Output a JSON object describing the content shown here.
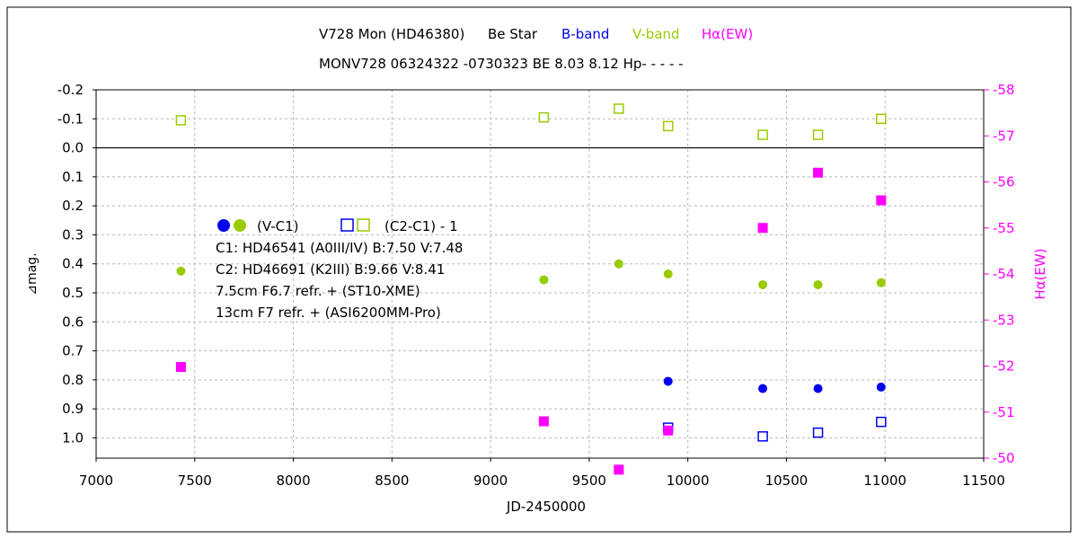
{
  "chart_data": {
    "type": "scatter",
    "title_line1": {
      "star": "V728 Mon (HD46380)",
      "kind": "Be Star",
      "bband": "B-band",
      "vband": "V-band",
      "halpha": "Hα(EW)"
    },
    "title_line2": "MONV728 06324322 -0730323 BE 8.03 8.12 Hp- - - - -",
    "xlabel": "JD-2450000",
    "ylabel_left": "⊿mag.",
    "ylabel_right": "Hα(EW)",
    "xlim": [
      7000,
      11500
    ],
    "ylim_left": [
      -0.2,
      1.07
    ],
    "ylim_right": [
      -58,
      -50
    ],
    "x_ticks": [
      "7000",
      "7500",
      "8000",
      "8500",
      "9000",
      "9500",
      "10000",
      "10500",
      "11000",
      "11500"
    ],
    "y_ticks_left": [
      "-0.2",
      "-0.1",
      "0.0",
      "0.1",
      "0.2",
      "0.3",
      "0.4",
      "0.5",
      "0.6",
      "0.7",
      "0.8",
      "0.9",
      "1.0"
    ],
    "y_ticks_right": [
      "-58",
      "-57",
      "-56",
      "-55",
      "-54",
      "-53",
      "-52",
      "-51",
      "-50"
    ],
    "series": [
      {
        "name": "B (V-C1)",
        "marker": "filled-circle",
        "color": "#0000ee",
        "axis": "left",
        "x": [
          9900,
          10380,
          10660,
          10980
        ],
        "y": [
          0.805,
          0.83,
          0.83,
          0.825
        ]
      },
      {
        "name": "V (V-C1)",
        "marker": "filled-circle",
        "color": "#99cc00",
        "axis": "left",
        "x": [
          7430,
          9270,
          9650,
          9900,
          10380,
          10660,
          10980
        ],
        "y": [
          0.425,
          0.455,
          0.4,
          0.435,
          0.472,
          0.472,
          0.465
        ]
      },
      {
        "name": "B (C2-C1)-1",
        "marker": "open-square",
        "color": "#0000ee",
        "axis": "left",
        "x": [
          9900,
          10380,
          10660,
          10980
        ],
        "y": [
          0.965,
          0.995,
          0.982,
          0.945
        ]
      },
      {
        "name": "V (C2-C1)-1",
        "marker": "open-square",
        "color": "#99cc00",
        "axis": "left",
        "x": [
          7430,
          9270,
          9650,
          9900,
          10380,
          10660,
          10980
        ],
        "y": [
          -0.095,
          -0.105,
          -0.135,
          -0.075,
          -0.045,
          -0.045,
          -0.1
        ]
      },
      {
        "name": "Hα(EW)",
        "marker": "filled-square",
        "color": "#ff00ff",
        "axis": "right",
        "x": [
          7430,
          9270,
          9650,
          9900,
          10380,
          10660,
          10980
        ],
        "y": [
          -51.98,
          -50.8,
          -49.75,
          -50.6,
          -55.0,
          -56.2,
          -55.6
        ]
      }
    ],
    "legend": {
      "label1": "(V-C1)",
      "label2": "(C2-C1) - 1",
      "lines": [
        "C1: HD46541 (A0III/IV) B:7.50 V:7.48",
        "C2: HD46691 (K2III) B:9.66 V:8.41",
        "7.5cm F6.7 refr. + (ST10-XME)",
        "13cm F7 refr. + (ASI6200MM-Pro)"
      ]
    },
    "grid": true,
    "colors": {
      "b": "#0000ee",
      "v": "#99cc00",
      "h": "#ff00ff",
      "frame": "#000000",
      "grid": "#b8b8b8"
    }
  }
}
